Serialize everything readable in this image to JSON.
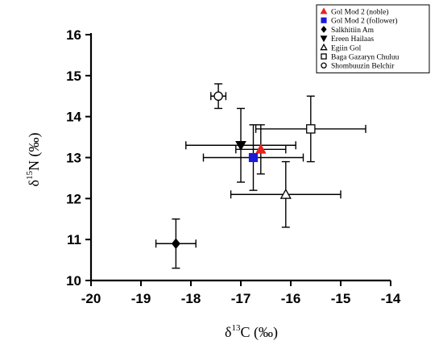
{
  "chart_data": {
    "type": "scatter",
    "title": "",
    "xlabel": "δ13C (‰)",
    "xlabel_base": "δ",
    "xlabel_sup": "13",
    "xlabel_rest": "C (‰)",
    "ylabel": "δ15N (‰)",
    "ylabel_base": "δ",
    "ylabel_sup": "15",
    "ylabel_rest": "N (‰)",
    "xlim": [
      -20,
      -14
    ],
    "ylim": [
      10,
      16
    ],
    "xticks": [
      "-20",
      "-19",
      "-18",
      "-17",
      "-16",
      "-15",
      "-14"
    ],
    "yticks": [
      "10",
      "11",
      "12",
      "13",
      "14",
      "15",
      "16"
    ],
    "grid": false,
    "legend_position": "top-right",
    "series": [
      {
        "name": "Gol Mod 2 (noble)",
        "marker": "triangle-filled",
        "color": "#e8231e",
        "x": -16.6,
        "y": 13.2,
        "xerr": 0.5,
        "yerr": 0.6
      },
      {
        "name": "Gol Mod 2 (follower)",
        "marker": "square-filled",
        "color": "#1a1ad8",
        "x": -16.75,
        "y": 13.0,
        "xerr": 1.0,
        "yerr": 0.8
      },
      {
        "name": "Salkhitiin Am",
        "marker": "diamond-filled",
        "color": "#000000",
        "x": -18.3,
        "y": 10.9,
        "xerr": 0.4,
        "yerr": 0.6
      },
      {
        "name": "Ereen Hailaas",
        "marker": "triangle-down-filled",
        "color": "#000000",
        "x": -17.0,
        "y": 13.3,
        "xerr": 1.1,
        "yerr": 0.9
      },
      {
        "name": "Egiin Gol",
        "marker": "triangle-open",
        "color": "#000000",
        "x": -16.1,
        "y": 12.1,
        "xerr": 1.1,
        "yerr": 0.8
      },
      {
        "name": "Baga Gazaryn Chuluu",
        "marker": "square-open",
        "color": "#000000",
        "x": -15.6,
        "y": 13.7,
        "xerr": 1.1,
        "yerr": 0.8
      },
      {
        "name": "Shombuuzin Belchir",
        "marker": "circle-open",
        "color": "#000000",
        "x": -17.45,
        "y": 14.5,
        "xerr": 0.15,
        "yerr": 0.3
      }
    ]
  }
}
